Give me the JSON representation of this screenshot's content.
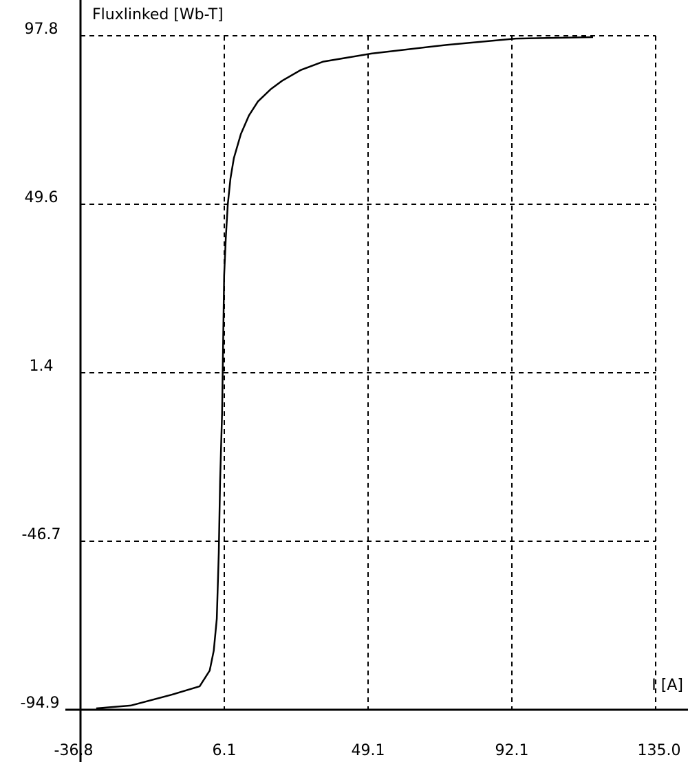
{
  "chart_data": {
    "type": "line",
    "title": "",
    "xlabel": "I [A]",
    "ylabel": "Fluxlinked [Wb-T]",
    "xlim": [
      -36.8,
      135.0
    ],
    "ylim": [
      -94.9,
      97.8
    ],
    "x_ticks": [
      "-36.8",
      "6.1",
      "49.1",
      "92.1",
      "135.0"
    ],
    "y_ticks": [
      "97.8",
      "49.6",
      "1.4",
      "-46.7",
      "-94.9"
    ],
    "grid": true,
    "grid_style": "dashed",
    "line_color": "#000000",
    "series": [
      {
        "x": [
          -32.1,
          -21.8,
          -9.5,
          -1.2,
          1.8,
          3.0,
          3.9,
          4.5,
          4.9,
          5.5,
          6.1,
          6.6,
          7.2,
          8.0,
          9.0,
          11.1,
          13.5,
          16.2,
          20.0,
          23.4,
          29.0,
          35.7,
          50.1,
          72.7,
          93.2,
          116.3
        ],
        "y": [
          -94.5,
          -93.7,
          -90.6,
          -88.2,
          -83.7,
          -78.0,
          -68.9,
          -50.0,
          -29.6,
          -10.0,
          29.3,
          40.0,
          49.6,
          57.0,
          62.8,
          69.7,
          75.0,
          79.0,
          82.5,
          84.9,
          88.0,
          90.4,
          92.7,
          95.2,
          97.0,
          97.4
        ]
      }
    ]
  }
}
